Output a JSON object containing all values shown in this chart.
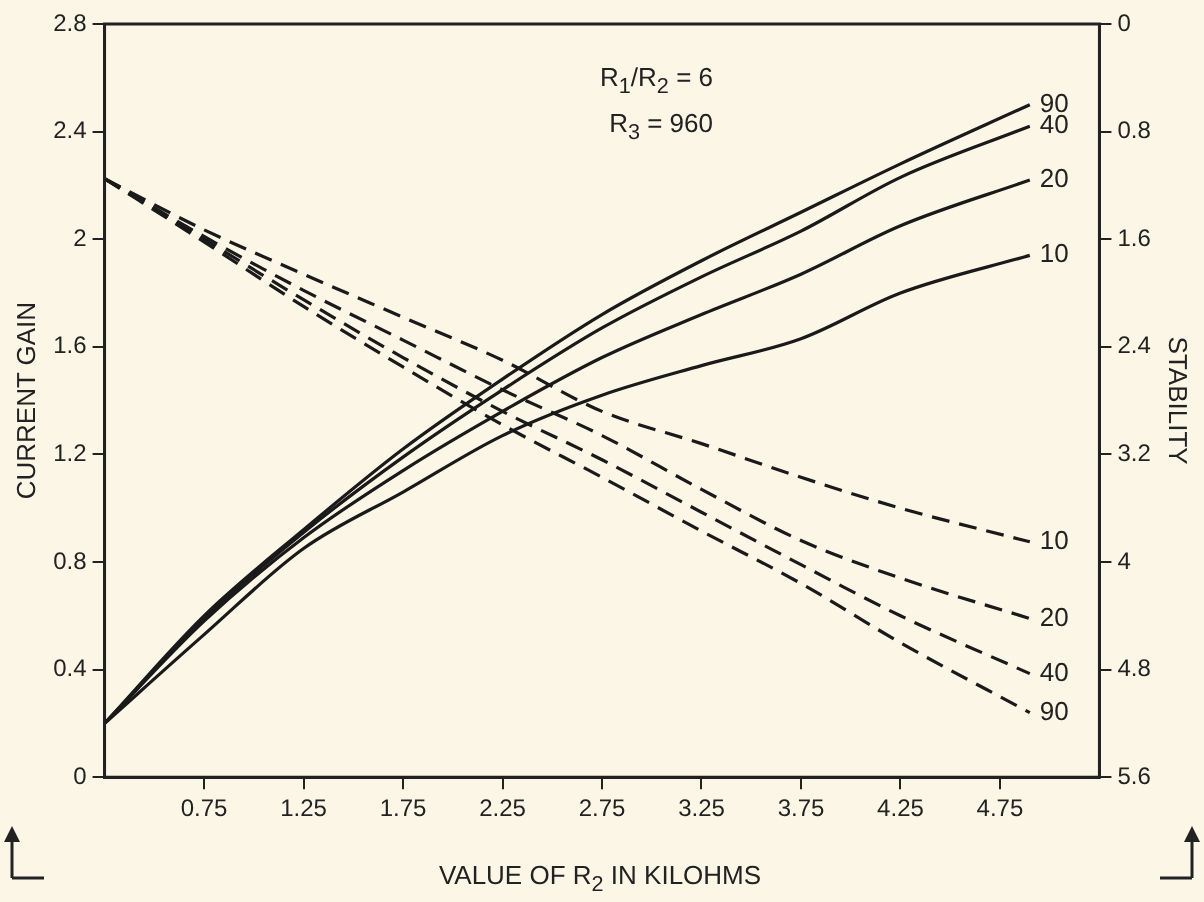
{
  "chart_data": {
    "type": "line",
    "xlabel": "VALUE OF R$_{2}$ IN KILOHMS",
    "ylabel": "CURRENT GAIN",
    "y2label": "STABILITY",
    "annotations": [
      "R$_{1}$/R$_{2}$ = 6",
      "R$_{3}$ = 960"
    ],
    "x": [
      0.25,
      0.75,
      1.25,
      1.75,
      2.25,
      2.75,
      3.25,
      3.75,
      4.25,
      4.9
    ],
    "series": [
      {
        "name": "90",
        "color": "#1a1a1a",
        "line_style": "solid",
        "values": [
          0.2,
          0.6,
          0.92,
          1.22,
          1.48,
          1.72,
          1.92,
          2.1,
          2.28,
          2.5
        ]
      },
      {
        "name": "40",
        "color": "#1a1a1a",
        "line_style": "solid",
        "values": [
          0.2,
          0.59,
          0.91,
          1.19,
          1.44,
          1.67,
          1.86,
          2.03,
          2.23,
          2.42
        ]
      },
      {
        "name": "20",
        "color": "#1a1a1a",
        "line_style": "solid",
        "values": [
          0.2,
          0.58,
          0.89,
          1.14,
          1.36,
          1.56,
          1.72,
          1.87,
          2.05,
          2.22
        ]
      },
      {
        "name": "10",
        "color": "#1a1a1a",
        "line_style": "solid",
        "values": [
          0.2,
          0.53,
          0.85,
          1.06,
          1.27,
          1.42,
          1.53,
          1.63,
          1.8,
          1.94
        ]
      },
      {
        "name": "10",
        "color": "#1a1a1a",
        "line_style": "dashed",
        "axis": "y2",
        "values": [
          1.15,
          1.53,
          1.86,
          2.18,
          2.5,
          2.88,
          3.12,
          3.37,
          3.6,
          3.85
        ]
      },
      {
        "name": "20",
        "color": "#1a1a1a",
        "line_style": "dashed",
        "axis": "y2",
        "values": [
          1.15,
          1.58,
          1.98,
          2.35,
          2.72,
          3.06,
          3.46,
          3.84,
          4.12,
          4.42
        ]
      },
      {
        "name": "40",
        "color": "#1a1a1a",
        "line_style": "dashed",
        "axis": "y2",
        "values": [
          1.15,
          1.6,
          2.05,
          2.48,
          2.88,
          3.24,
          3.63,
          4.02,
          4.4,
          4.83
        ]
      },
      {
        "name": "90",
        "color": "#1a1a1a",
        "line_style": "dashed",
        "axis": "y2",
        "values": [
          1.15,
          1.62,
          2.1,
          2.55,
          2.98,
          3.37,
          3.77,
          4.16,
          4.6,
          5.12
        ]
      }
    ],
    "xlim": [
      0.25,
      5.25
    ],
    "xticks": [
      0.75,
      1.25,
      1.75,
      2.25,
      2.75,
      3.25,
      3.75,
      4.25,
      4.75
    ],
    "ylim": [
      0,
      2.8
    ],
    "yticks": [
      0,
      0.4,
      0.8,
      1.2,
      1.6,
      2.0,
      2.4,
      2.8
    ],
    "y2lim": [
      5.6,
      0
    ],
    "y2ticks": [
      0,
      0.8,
      1.6,
      2.4,
      3.2,
      4,
      4.8,
      5.6
    ],
    "grid": false,
    "legend": false,
    "marker": "none"
  }
}
